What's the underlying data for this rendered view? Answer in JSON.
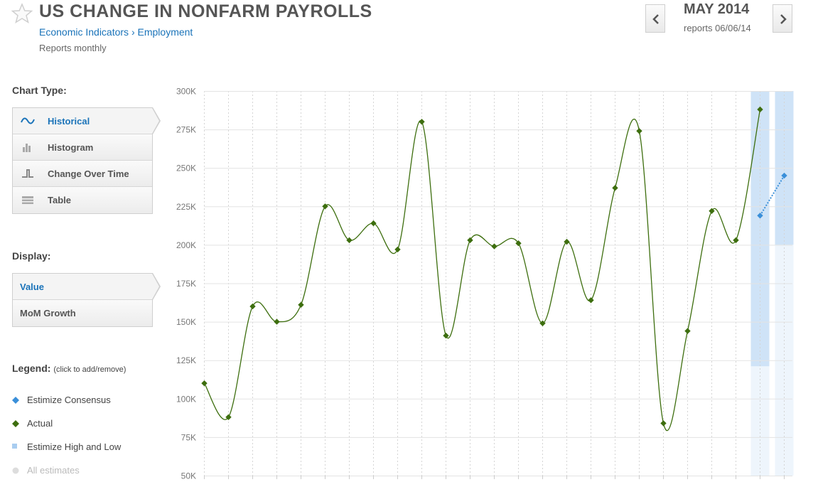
{
  "header": {
    "title": "US CHANGE IN NONFARM PAYROLLS",
    "breadcrumb": [
      "Economic Indicators",
      "Employment"
    ],
    "breadcrumb_sep": "›",
    "frequency": "Reports monthly",
    "period": "MAY 2014",
    "report_date": "reports 06/06/14"
  },
  "sidebar": {
    "chart_type_label": "Chart Type:",
    "chart_types": [
      {
        "label": "Historical",
        "icon": "wave-icon",
        "active": true
      },
      {
        "label": "Histogram",
        "icon": "bar-chart-icon",
        "active": false
      },
      {
        "label": "Change Over Time",
        "icon": "step-icon",
        "active": false
      },
      {
        "label": "Table",
        "icon": "table-icon",
        "active": false
      }
    ],
    "display_label": "Display:",
    "display_options": [
      {
        "label": "Value",
        "active": true
      },
      {
        "label": "MoM Growth",
        "active": false
      }
    ],
    "legend_label": "Legend:",
    "legend_hint": "(click to add/remove)",
    "legend": [
      {
        "label": "Estimize Consensus",
        "color": "#3a8fd9",
        "marker": "diamond"
      },
      {
        "label": "Actual",
        "color": "#3d6e0e",
        "marker": "diamond"
      },
      {
        "label": "Estimize High and Low",
        "color": "#a9cdf0",
        "marker": "square"
      },
      {
        "label": "All estimates",
        "color": "#dddddd",
        "marker": "circle"
      }
    ]
  },
  "colors": {
    "actual": "#3d6e0e",
    "consensus": "#3a8fd9",
    "range": "#cfe3f7",
    "range_light": "#eef5fc",
    "accent": "#1a73b9"
  },
  "chart_data": {
    "type": "line",
    "ylim": [
      50000,
      300000
    ],
    "yticks": [
      50000,
      75000,
      100000,
      125000,
      150000,
      175000,
      200000,
      225000,
      250000,
      275000,
      300000
    ],
    "ytick_labels": [
      "50K",
      "75K",
      "100K",
      "125K",
      "150K",
      "175K",
      "200K",
      "225K",
      "250K",
      "275K",
      "300K"
    ],
    "grid": true,
    "series": [
      {
        "type": "actual",
        "values": [
          110000,
          88000,
          160000,
          150000,
          161000,
          225000,
          203000,
          214000,
          197000,
          280000,
          141000,
          203000,
          199000,
          201000,
          149000,
          202000,
          164000,
          237000,
          274000,
          84000,
          144000,
          222000,
          203000,
          288000
        ]
      },
      {
        "type": "consensus",
        "points": [
          [
            23,
            219000
          ],
          [
            24,
            245000
          ]
        ]
      }
    ],
    "estimate_ranges": [
      {
        "index": 23,
        "low": 121000,
        "high": 300000
      },
      {
        "index": 24,
        "low": 200000,
        "high": 300000
      }
    ]
  }
}
